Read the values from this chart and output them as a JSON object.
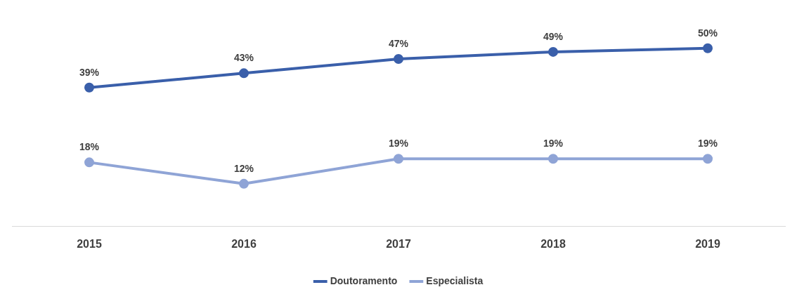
{
  "chart_data": {
    "type": "line",
    "categories": [
      "2015",
      "2016",
      "2017",
      "2018",
      "2019"
    ],
    "series": [
      {
        "name": "Doutoramento",
        "color": "#3a5faa",
        "values": [
          39,
          43,
          47,
          49,
          50
        ],
        "value_labels": [
          "39%",
          "43%",
          "47%",
          "49%",
          "50%"
        ]
      },
      {
        "name": "Especialista",
        "color": "#8fa4d6",
        "values": [
          18,
          12,
          19,
          19,
          19
        ],
        "value_labels": [
          "18%",
          "12%",
          "19%",
          "19%",
          "19%"
        ]
      }
    ],
    "tick_labels": "x",
    "grid": false,
    "legend": "bottom",
    "marker": "circle",
    "line_style": "solid"
  }
}
